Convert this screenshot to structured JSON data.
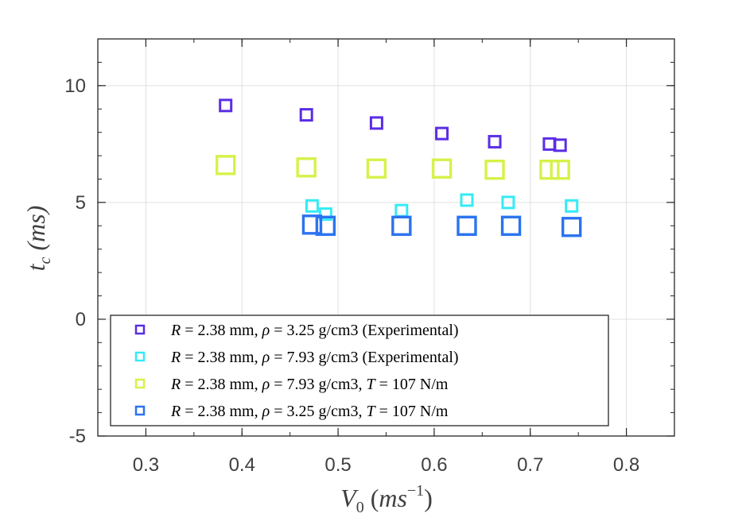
{
  "chart_data": {
    "type": "scatter",
    "xlabel": {
      "main": "V",
      "sub": "0",
      "unit_open": " (",
      "unit": "ms",
      "sup": "−1",
      "unit_close": ")"
    },
    "ylabel": {
      "main": "t",
      "sub": "c",
      "unit": " (ms)"
    },
    "xlim": [
      0.25,
      0.85
    ],
    "ylim": [
      -5,
      12
    ],
    "xticks": [
      "0.3",
      "0.4",
      "0.5",
      "0.6",
      "0.7",
      "0.8"
    ],
    "yticks": [
      "10",
      "5",
      "0",
      "-5"
    ],
    "grid": true,
    "legend_position": "bottom-left",
    "series": [
      {
        "name": "R = 2.38 mm, ρ = 3.25 g/cm3 (Experimental)",
        "legend": {
          "r": "R",
          "r_val": " = 2.38 mm, ",
          "rho": "ρ",
          "rest": " = 3.25 g/cm3 (Experimental)"
        },
        "color": "#5b2de6",
        "marker_size": "small",
        "points": [
          [
            0.383,
            9.15
          ],
          [
            0.467,
            8.75
          ],
          [
            0.54,
            8.4
          ],
          [
            0.608,
            7.95
          ],
          [
            0.663,
            7.6
          ],
          [
            0.72,
            7.5
          ],
          [
            0.731,
            7.45
          ]
        ]
      },
      {
        "name": "R = 2.38 mm, ρ = 7.93 g/cm3 (Experimental)",
        "legend": {
          "r": "R",
          "r_val": " = 2.38 mm, ",
          "rho": "ρ",
          "rest": " = 7.93 g/cm3 (Experimental)"
        },
        "color": "#35ebf5",
        "marker_size": "small",
        "points": [
          [
            0.473,
            4.85
          ],
          [
            0.487,
            4.5
          ],
          [
            0.566,
            4.65
          ],
          [
            0.634,
            5.1
          ],
          [
            0.677,
            5.0
          ],
          [
            0.743,
            4.85
          ]
        ]
      },
      {
        "name": "R = 2.38 mm, ρ = 7.93 g/cm3, T = 107 N/m",
        "legend": {
          "r": "R",
          "r_val": " = 2.38 mm, ",
          "rho": "ρ",
          "rest": " = 7.93 g/cm3, ",
          "t": "T",
          "t_val": " = 107 N/m"
        },
        "color": "#d6f24a",
        "marker_size": "large",
        "points": [
          [
            0.383,
            6.6
          ],
          [
            0.467,
            6.5
          ],
          [
            0.54,
            6.45
          ],
          [
            0.608,
            6.45
          ],
          [
            0.663,
            6.4
          ],
          [
            0.72,
            6.4
          ],
          [
            0.731,
            6.4
          ]
        ]
      },
      {
        "name": "R = 2.38 mm, ρ = 3.25 g/cm3, T = 107 N/m",
        "legend": {
          "r": "R",
          "r_val": " = 2.38 mm, ",
          "rho": "ρ",
          "rest": " = 3.25 g/cm3, ",
          "t": "T",
          "t_val": " = 107 N/m"
        },
        "color": "#2b73f0",
        "marker_size": "large",
        "points": [
          [
            0.473,
            4.05
          ],
          [
            0.487,
            4.0
          ],
          [
            0.566,
            4.0
          ],
          [
            0.634,
            4.0
          ],
          [
            0.68,
            4.0
          ],
          [
            0.743,
            3.95
          ]
        ]
      }
    ]
  }
}
